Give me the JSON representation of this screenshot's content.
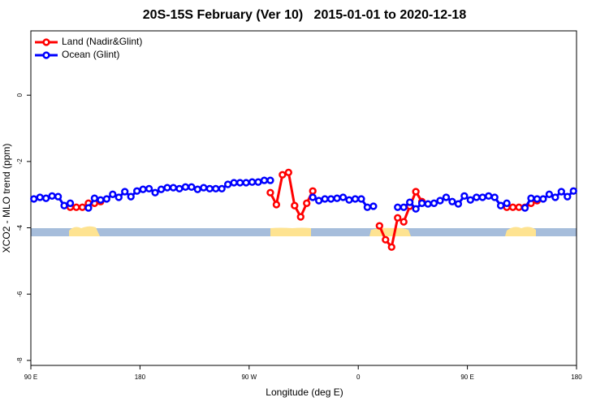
{
  "chart_data": {
    "type": "line",
    "title": "20S-15S February (Ver 10)   2015-01-01 to 2020-12-18",
    "x_label": "Longitude (deg E)",
    "y_label": "XCO2 - MLO trend (ppm)",
    "x": [
      92.5,
      97.5,
      102.5,
      107.5,
      112.5,
      117.5,
      122.5,
      127.5,
      132.5,
      137.5,
      142.5,
      147.5,
      152.5,
      157.5,
      162.5,
      167.5,
      172.5,
      177.5,
      182.5,
      187.5,
      192.5,
      197.5,
      202.5,
      207.5,
      212.5,
      217.5,
      222.5,
      227.5,
      232.5,
      237.5,
      242.5,
      247.5,
      252.5,
      257.5,
      262.5,
      267.5,
      272.5,
      277.5,
      282.5,
      287.5,
      292.5,
      297.5,
      302.5,
      307.5,
      312.5,
      317.5,
      322.5,
      327.5,
      332.5,
      337.5,
      342.5,
      347.5,
      352.5,
      357.5,
      362.5,
      367.5,
      372.5,
      377.5,
      382.5,
      387.5,
      392.5,
      397.5,
      402.5,
      407.5,
      412.5,
      417.5,
      422.5,
      427.5,
      432.5,
      437.5,
      442.5,
      447.5,
      452.5,
      457.5,
      462.5,
      467.5,
      472.5,
      477.5,
      482.5,
      487.5,
      492.5,
      497.5,
      502.5,
      507.5,
      512.5,
      517.5,
      522.5,
      527.5,
      532.5,
      537.5
    ],
    "series": [
      {
        "name": "Land (Nadir&Glint)",
        "color": "#ff0000",
        "values": [
          null,
          null,
          null,
          null,
          null,
          null,
          -3.38,
          -3.38,
          -3.38,
          -3.26,
          -3.26,
          -3.21,
          null,
          null,
          null,
          null,
          null,
          null,
          null,
          null,
          null,
          null,
          null,
          null,
          null,
          null,
          null,
          null,
          null,
          null,
          null,
          null,
          null,
          null,
          null,
          null,
          null,
          null,
          null,
          -2.94,
          -3.3,
          -2.4,
          -2.33,
          -3.33,
          -3.67,
          -3.26,
          -2.89,
          null,
          null,
          null,
          null,
          null,
          null,
          null,
          null,
          null,
          null,
          -3.94,
          -4.36,
          -4.58,
          -3.7,
          -3.82,
          -3.35,
          -2.91,
          -3.21,
          null,
          null,
          null,
          null,
          null,
          null,
          null,
          null,
          null,
          null,
          null,
          null,
          null,
          -3.38,
          -3.38,
          -3.38,
          -3.38,
          -3.26,
          -3.18,
          null,
          null,
          null,
          null,
          null,
          null
        ]
      },
      {
        "name": "Ocean (Glint)",
        "color": "#0000ff",
        "values": [
          -3.13,
          -3.08,
          -3.11,
          -3.04,
          -3.06,
          -3.33,
          -3.26,
          null,
          null,
          -3.4,
          -3.11,
          -3.16,
          -3.13,
          -2.99,
          -3.08,
          -2.91,
          -3.06,
          -2.89,
          -2.84,
          -2.82,
          -2.94,
          -2.84,
          -2.79,
          -2.79,
          -2.82,
          -2.77,
          -2.77,
          -2.84,
          -2.79,
          -2.82,
          -2.82,
          -2.82,
          -2.69,
          -2.64,
          -2.64,
          -2.64,
          -2.62,
          -2.62,
          -2.57,
          -2.57,
          null,
          null,
          null,
          null,
          null,
          null,
          -3.08,
          -3.18,
          -3.13,
          -3.13,
          -3.11,
          -3.08,
          -3.16,
          -3.13,
          -3.13,
          -3.38,
          -3.35,
          null,
          null,
          null,
          -3.38,
          -3.38,
          -3.23,
          -3.43,
          -3.26,
          -3.28,
          -3.26,
          -3.18,
          -3.08,
          -3.21,
          -3.28,
          -3.04,
          -3.16,
          -3.08,
          -3.08,
          -3.04,
          -3.08,
          -3.33,
          -3.26,
          null,
          null,
          -3.4,
          -3.11,
          -3.13,
          -3.13,
          -2.99,
          -3.08,
          -2.91,
          -3.06,
          -2.89
        ]
      }
    ],
    "xlim": [
      90,
      540
    ],
    "xticks": [
      {
        "value": 90,
        "label": "90 E"
      },
      180,
      {
        "value": 270,
        "label": "90 W"
      },
      {
        "value": 360,
        "label": "0"
      },
      {
        "value": 450,
        "label": "90 E"
      },
      {
        "value": 540,
        "label": "180"
      }
    ],
    "ylim": [
      -8.15,
      1.94
    ],
    "yticks": [
      0,
      -2,
      -4,
      -6,
      -8
    ],
    "grid": false,
    "legend": "top-left"
  }
}
